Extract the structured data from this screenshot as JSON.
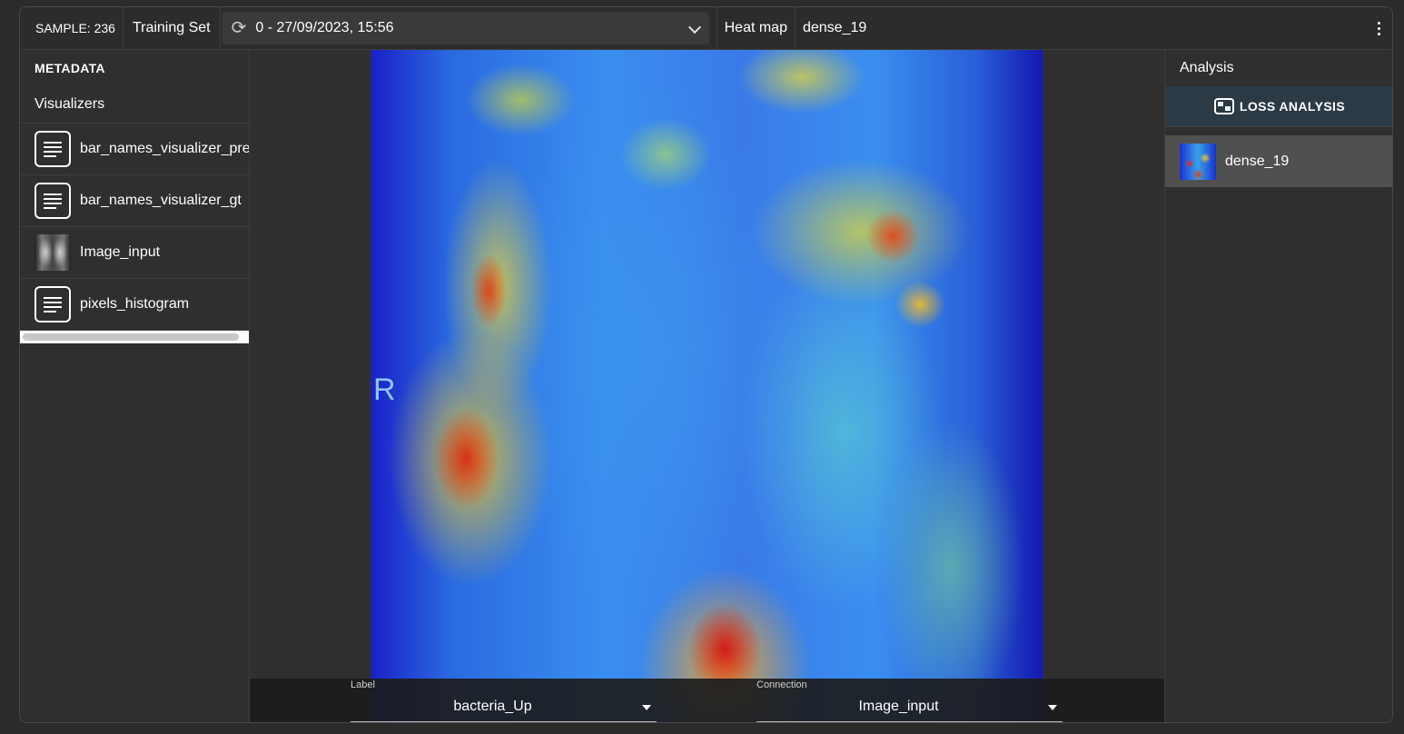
{
  "topbar": {
    "sample": "SAMPLE: 236",
    "dataset": "Training Set",
    "session": "0 - 27/09/2023, 15:56",
    "view_mode": "Heat map",
    "layer": "dense_19"
  },
  "left_panel": {
    "section_title": "METADATA",
    "visualizers_title": "Visualizers",
    "items": [
      {
        "label": "bar_names_visualizer_pred",
        "icon": "document-icon"
      },
      {
        "label": "bar_names_visualizer_gt",
        "icon": "document-icon"
      },
      {
        "label": "Image_input",
        "icon": "xray-thumbnail"
      },
      {
        "label": "pixels_histogram",
        "icon": "document-icon"
      }
    ]
  },
  "center": {
    "image_marker": "R",
    "label_selector": {
      "caption": "Label",
      "value": "bacteria_Up"
    },
    "connection_selector": {
      "caption": "Connection",
      "value": "Image_input"
    }
  },
  "right_panel": {
    "title": "Analysis",
    "loss_button": "LOSS ANALYSIS",
    "items": [
      {
        "label": "dense_19",
        "icon": "heatmap-thumbnail"
      }
    ]
  }
}
